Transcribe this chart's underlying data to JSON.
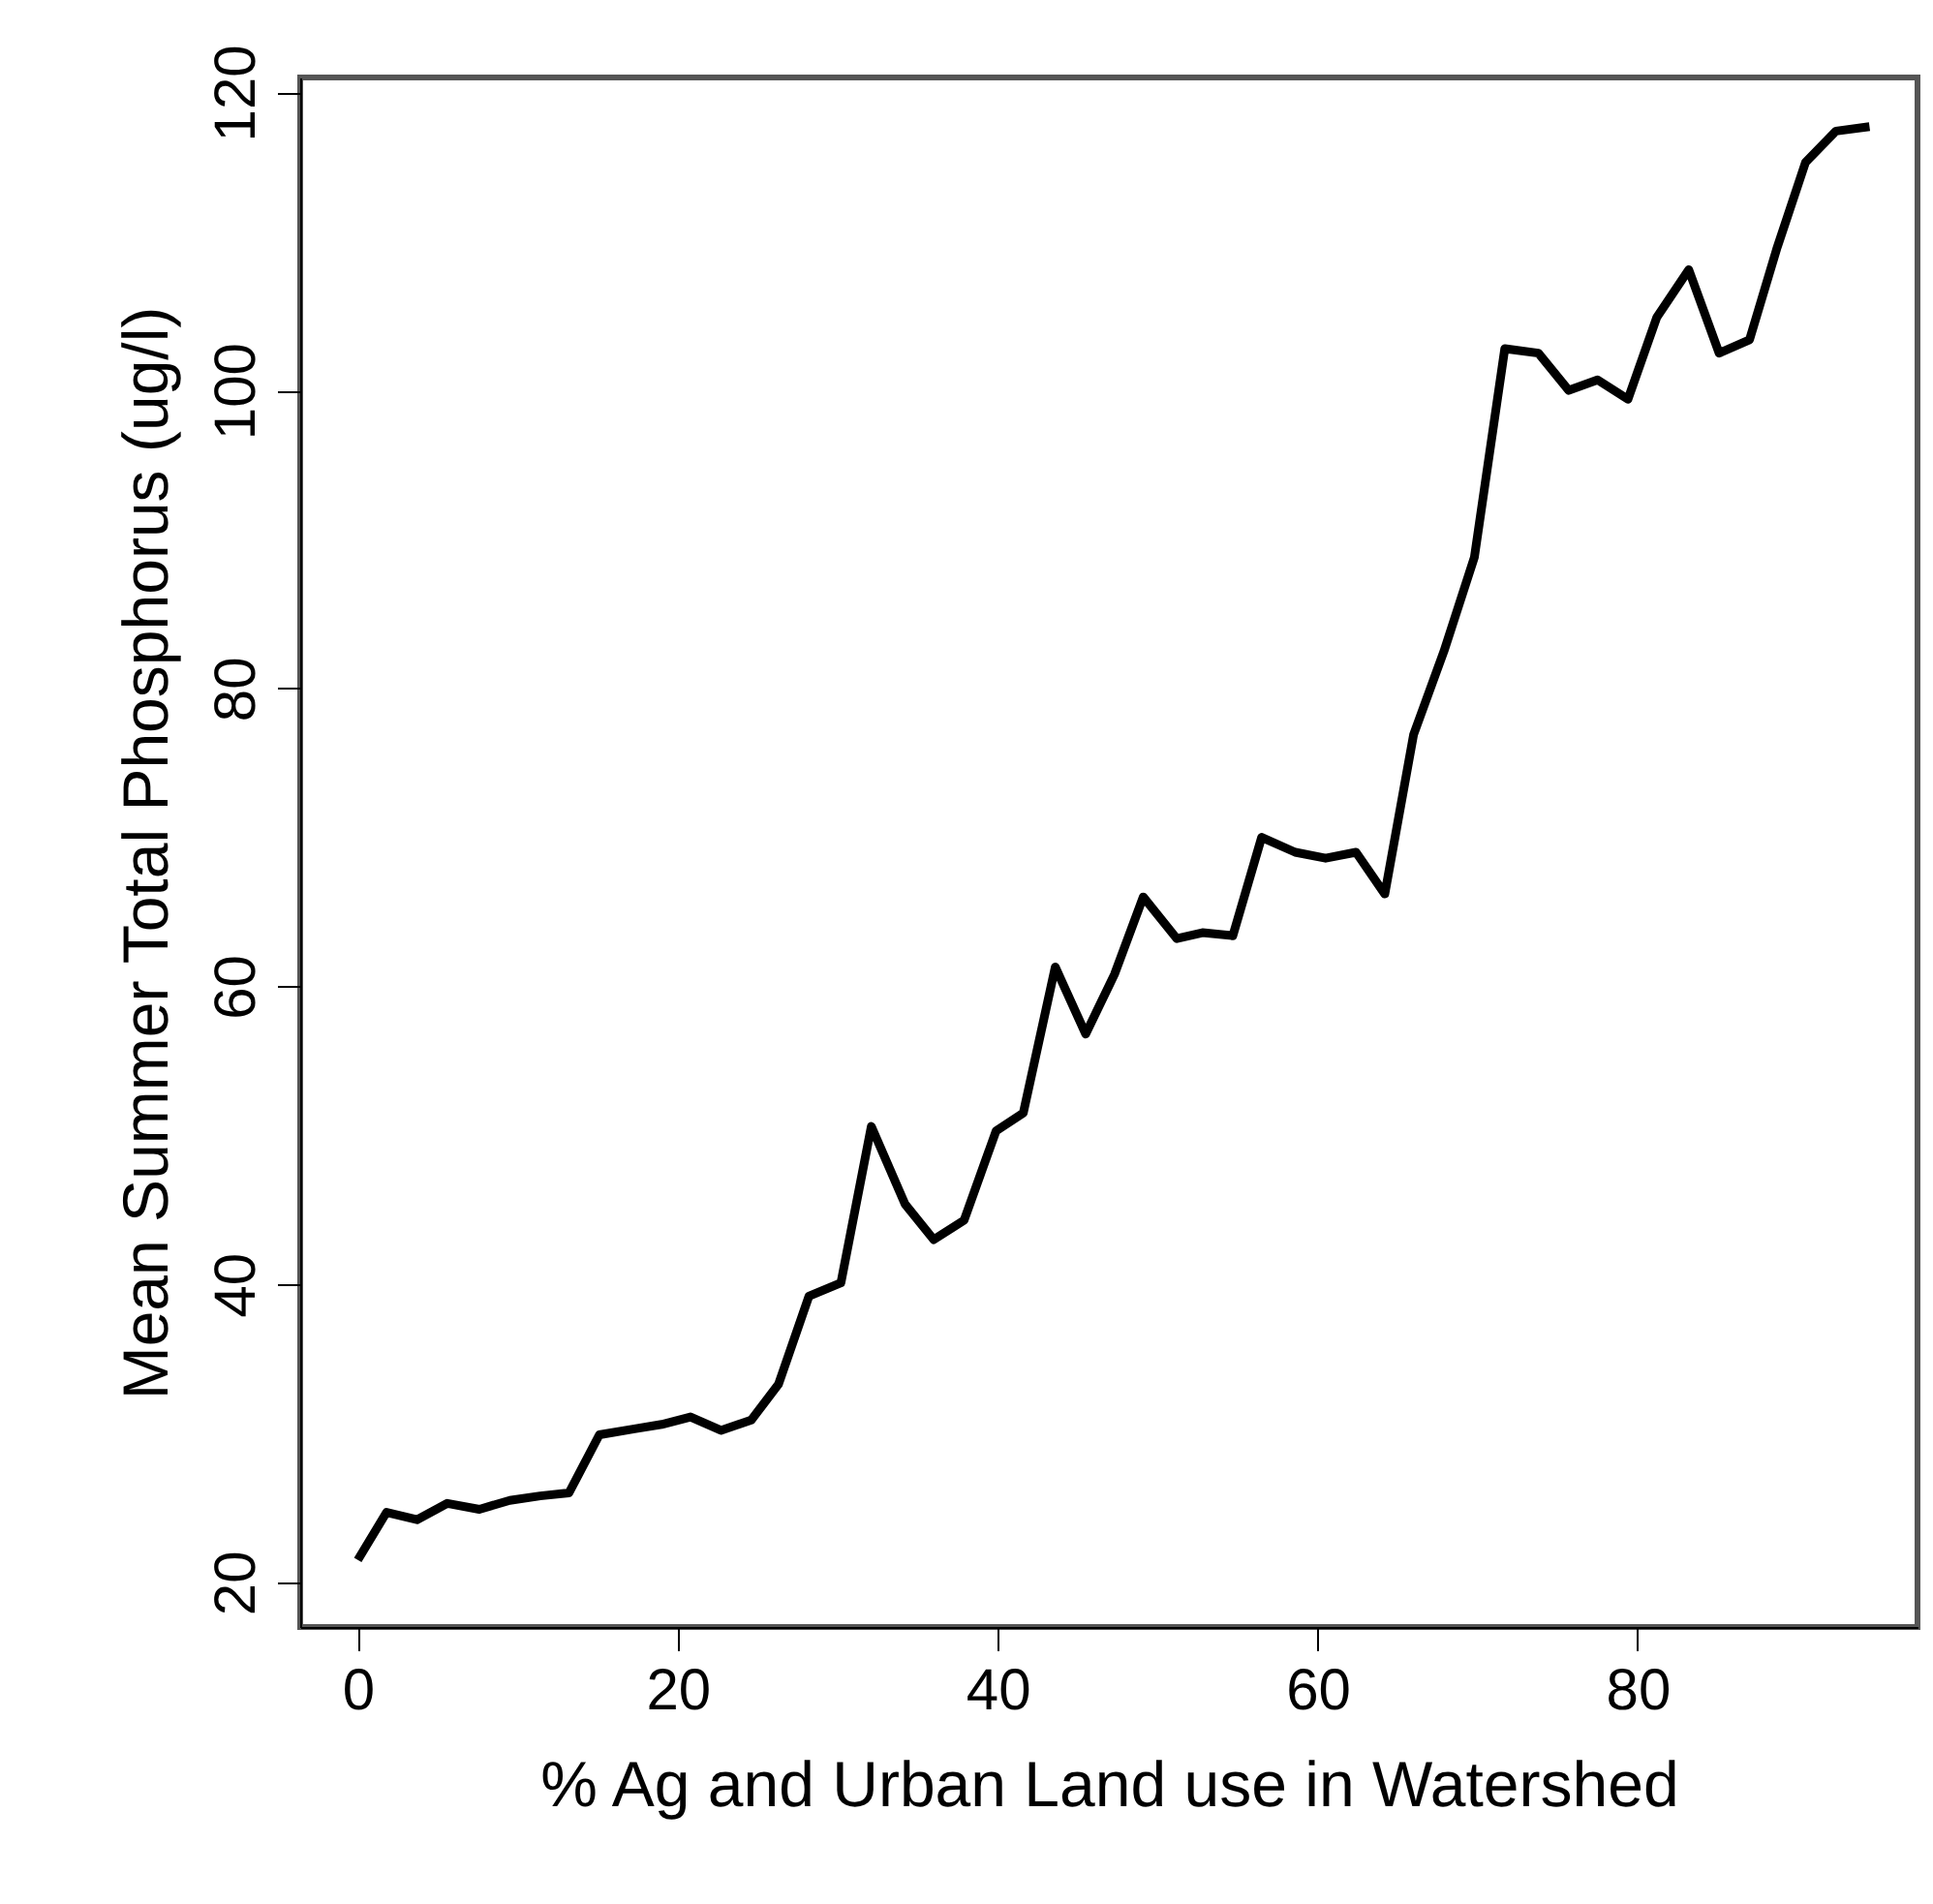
{
  "chart_data": {
    "type": "line",
    "xlabel": "% Ag and Urban Land use in Watershed",
    "ylabel": "Mean Summer Total Phosphorus (ug/l)",
    "x": [
      0,
      1.8,
      3.7,
      5.6,
      7.6,
      9.5,
      11.4,
      13.2,
      15.1,
      17.3,
      19.0,
      20.8,
      22.7,
      24.6,
      26.3,
      28.2,
      30.2,
      32.1,
      34.2,
      36.0,
      37.9,
      39.9,
      41.6,
      43.6,
      45.5,
      47.3,
      49.1,
      51.2,
      52.8,
      54.7,
      56.5,
      58.6,
      60.5,
      62.4,
      64.2,
      66.0,
      67.9,
      69.8,
      71.7,
      73.8,
      75.7,
      77.5,
      79.4,
      81.2,
      83.2,
      85.1,
      87.0,
      88.7,
      90.5,
      92.4,
      94.5
    ],
    "series": [
      {
        "color": "#000000",
        "values": [
          21.5,
          24.7,
          24.2,
          25.3,
          24.9,
          25.5,
          25.8,
          26.0,
          29.9,
          30.3,
          30.6,
          31.1,
          30.2,
          30.9,
          33.3,
          39.2,
          40.1,
          50.6,
          45.4,
          43.0,
          44.3,
          50.3,
          51.5,
          61.3,
          56.8,
          60.8,
          66.0,
          63.2,
          63.6,
          63.4,
          70.0,
          69.0,
          68.6,
          69.0,
          66.2,
          76.9,
          82.5,
          88.8,
          102.8,
          102.5,
          100.0,
          100.7,
          99.4,
          104.9,
          108.1,
          102.5,
          103.4,
          109.5,
          115.3,
          117.4,
          117.7
        ]
      }
    ],
    "xlim": [
      -3.6,
      97.5
    ],
    "ylim": [
      17,
      121
    ],
    "xticks": [
      0,
      20,
      40,
      60,
      80
    ],
    "yticks": [
      20,
      40,
      60,
      80,
      100,
      120
    ],
    "grid": false,
    "marker": "none",
    "line_style": "solid"
  }
}
